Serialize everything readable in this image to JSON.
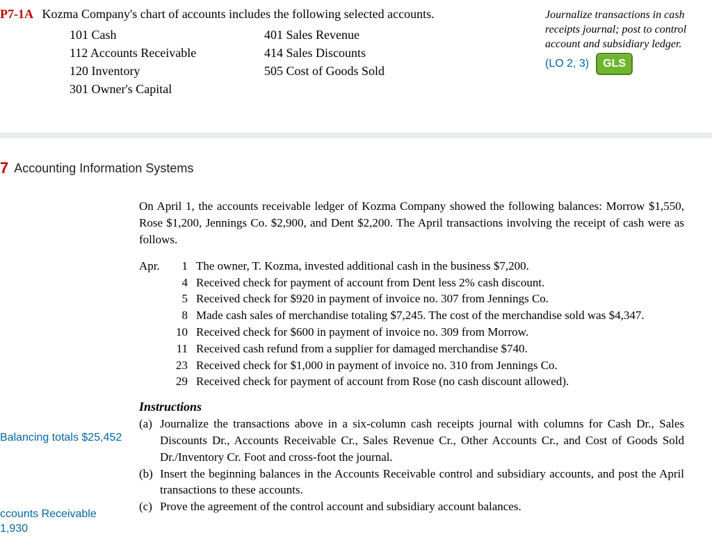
{
  "problem": {
    "id": "P7-1A",
    "intro": "Kozma Company's chart of accounts includes the following selected accounts.",
    "accounts_col1": [
      "101  Cash",
      "112  Accounts Receivable",
      "120  Inventory",
      "301  Owner's Capital"
    ],
    "accounts_col2": [
      "401  Sales Revenue",
      "414  Sales Discounts",
      "505  Cost of Goods Sold"
    ]
  },
  "objective": {
    "text": "Journalize transactions in cash receipts journal; post to control account and subsidiary ledger.",
    "lo": "(LO 2, 3)",
    "badge": "GLS"
  },
  "section": {
    "number": "7",
    "title": "Accounting Information Systems"
  },
  "body": {
    "intro": "On April 1, the accounts receivable ledger of Kozma Company showed the following balances: Morrow $1,550, Rose $1,200, Jennings Co. $2,900, and Dent $2,200. The April transactions involving the receipt of cash were as follows.",
    "month": "Apr.",
    "transactions": [
      {
        "day": "1",
        "desc": "The owner, T. Kozma, invested additional cash in the business $7,200."
      },
      {
        "day": "4",
        "desc": "Received check for payment of account from Dent less 2% cash discount."
      },
      {
        "day": "5",
        "desc": "Received check for $920 in payment of invoice no. 307 from Jennings Co."
      },
      {
        "day": "8",
        "desc": "Made cash sales of merchandise totaling $7,245. The cost of the merchandise sold was $4,347."
      },
      {
        "day": "10",
        "desc": "Received check for $600 in payment of invoice no. 309 from Morrow."
      },
      {
        "day": "11",
        "desc": "Received cash refund from a supplier for damaged merchandise $740."
      },
      {
        "day": "23",
        "desc": "Received check for $1,000 in payment of invoice no. 310 from Jennings Co."
      },
      {
        "day": "29",
        "desc": "Received check for payment of account from Rose (no cash discount allowed)."
      }
    ],
    "instructions_header": "Instructions",
    "instructions": [
      {
        "label": "(a)",
        "text": "Journalize the transactions above in a six-column cash receipts journal with columns for Cash Dr., Sales Discounts Dr., Accounts Receivable Cr., Sales Revenue Cr., Other Accounts Cr., and Cost of Goods Sold Dr./Inventory Cr. Foot and cross-foot the journal."
      },
      {
        "label": "(b)",
        "text": "Insert the beginning balances in the Accounts Receivable control and subsidiary accounts, and post the April transactions to these accounts."
      },
      {
        "label": "(c)",
        "text": "Prove the agreement of the control account and subsidiary account balances."
      }
    ]
  },
  "side_notes": {
    "note1": "Balancing totals $25,452",
    "note2_line1": "ccounts Receivable",
    "note2_line2": "1,930"
  }
}
